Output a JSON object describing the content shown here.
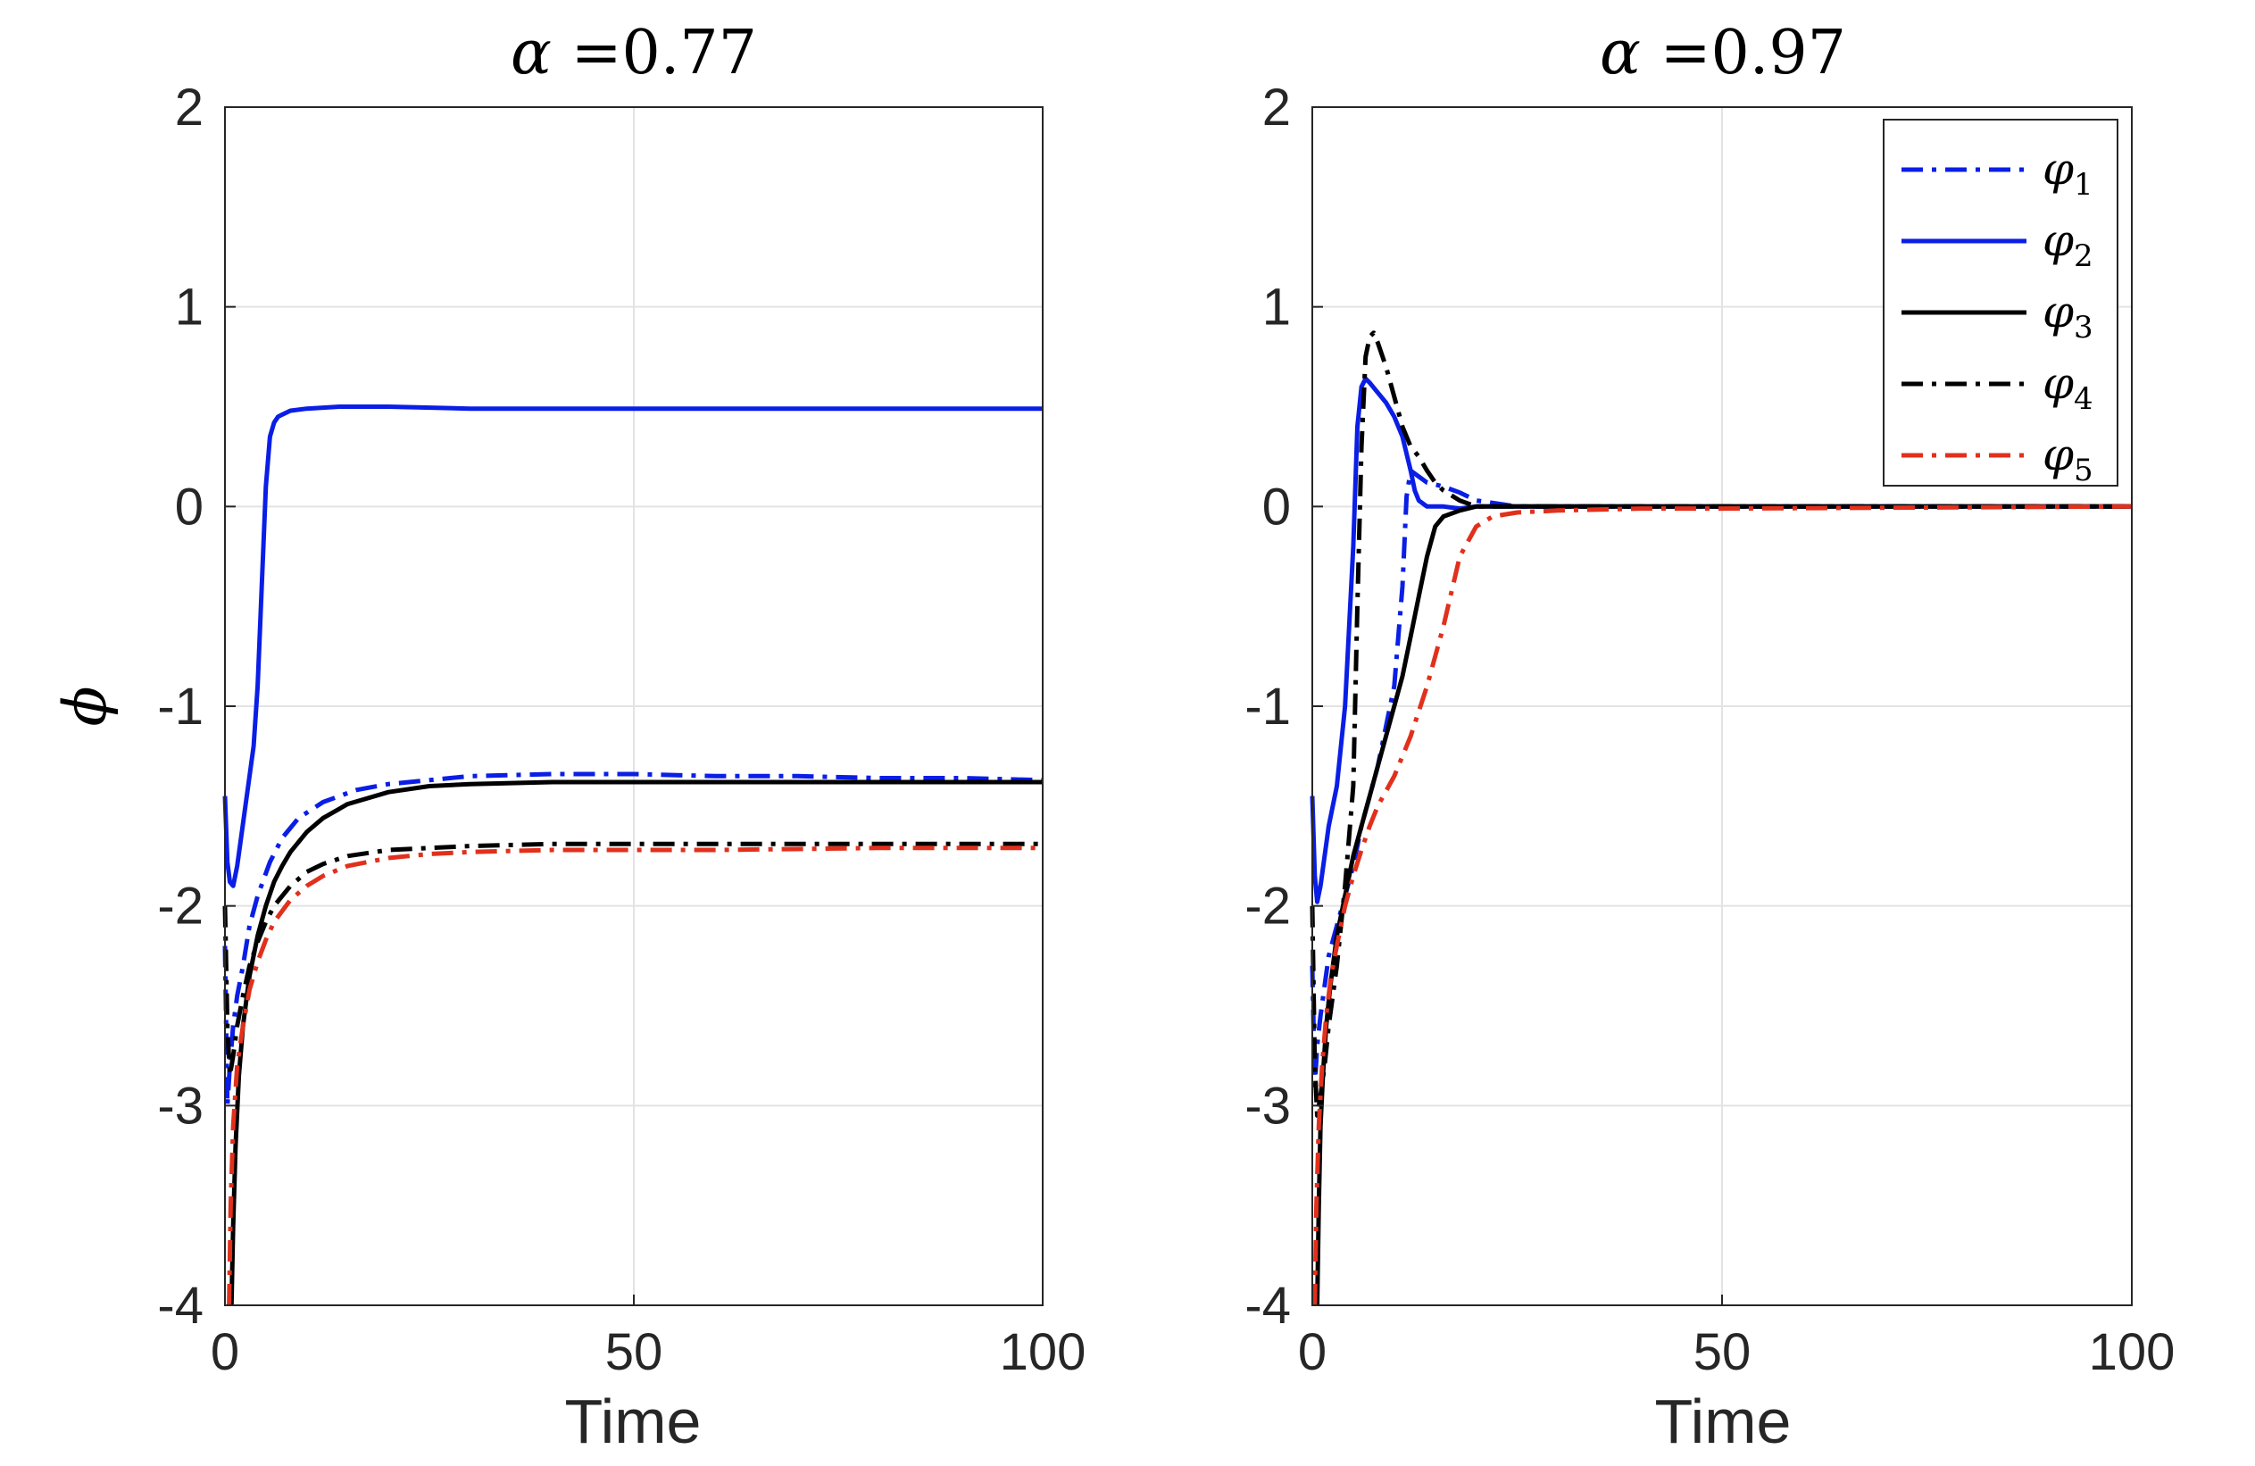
{
  "chart_data": [
    {
      "type": "line",
      "title_prefix": "α =",
      "title_value": "0.77",
      "xlabel": "Time",
      "ylabel": "ϕ",
      "xlim": [
        0,
        100
      ],
      "ylim": [
        -4,
        2
      ],
      "xticks": [
        "0",
        "50",
        "100"
      ],
      "yticks": [
        "-4",
        "-3",
        "-2",
        "-1",
        "0",
        "1",
        "2"
      ],
      "grid": true,
      "series": [
        {
          "name": "φ1",
          "color": "#0a1ee6",
          "dash": "dashdot",
          "x": [
            0,
            0.3,
            0.6,
            1.0,
            1.5,
            2.2,
            3,
            4,
            5.5,
            7,
            9,
            12,
            16,
            20,
            25,
            30,
            40,
            50,
            60,
            70,
            80,
            90,
            100
          ],
          "y": [
            -2.2,
            -3.0,
            -2.8,
            -2.6,
            -2.45,
            -2.3,
            -2.1,
            -1.95,
            -1.78,
            -1.66,
            -1.56,
            -1.48,
            -1.42,
            -1.39,
            -1.37,
            -1.35,
            -1.34,
            -1.34,
            -1.35,
            -1.35,
            -1.36,
            -1.36,
            -1.37
          ]
        },
        {
          "name": "φ2",
          "color": "#0a1ee6",
          "dash": "solid",
          "x": [
            0,
            0.3,
            0.6,
            1.0,
            1.5,
            2,
            2.5,
            3,
            3.5,
            4,
            4.5,
            5,
            5.5,
            6,
            6.5,
            7,
            8,
            10,
            14,
            20,
            30,
            50,
            70,
            100
          ],
          "y": [
            -1.45,
            -1.78,
            -1.88,
            -1.9,
            -1.8,
            -1.65,
            -1.5,
            -1.35,
            -1.2,
            -0.9,
            -0.4,
            0.1,
            0.35,
            0.42,
            0.45,
            0.46,
            0.48,
            0.49,
            0.5,
            0.5,
            0.49,
            0.49,
            0.49,
            0.49
          ]
        },
        {
          "name": "φ3",
          "color": "#000000",
          "dash": "solid",
          "x": [
            0.8,
            1.0,
            1.3,
            1.7,
            2.2,
            3,
            4,
            5,
            6,
            7,
            8,
            10,
            12,
            15,
            20,
            25,
            30,
            40,
            50,
            60,
            80,
            100
          ],
          "y": [
            -4.0,
            -3.6,
            -3.2,
            -2.85,
            -2.6,
            -2.35,
            -2.15,
            -2.0,
            -1.88,
            -1.8,
            -1.73,
            -1.63,
            -1.56,
            -1.49,
            -1.43,
            -1.4,
            -1.39,
            -1.38,
            -1.38,
            -1.38,
            -1.38,
            -1.38
          ]
        },
        {
          "name": "φ4",
          "color": "#000000",
          "dash": "dashdot",
          "x": [
            0,
            0.3,
            0.6,
            1.0,
            1.5,
            2.2,
            3,
            4,
            5,
            6,
            8,
            10,
            12,
            15,
            20,
            25,
            30,
            40,
            50,
            60,
            80,
            100
          ],
          "y": [
            -2.0,
            -2.6,
            -2.85,
            -2.75,
            -2.6,
            -2.45,
            -2.3,
            -2.18,
            -2.08,
            -2.0,
            -1.9,
            -1.83,
            -1.79,
            -1.75,
            -1.72,
            -1.71,
            -1.7,
            -1.69,
            -1.69,
            -1.69,
            -1.69,
            -1.69
          ]
        },
        {
          "name": "φ5",
          "color": "#e1301c",
          "dash": "dashdot",
          "x": [
            0.5,
            0.7,
            1.0,
            1.5,
            2.2,
            3,
            4,
            5,
            6,
            8,
            10,
            12,
            15,
            20,
            25,
            30,
            40,
            50,
            60,
            80,
            100
          ],
          "y": [
            -4.0,
            -3.5,
            -3.1,
            -2.8,
            -2.6,
            -2.42,
            -2.28,
            -2.17,
            -2.08,
            -1.97,
            -1.9,
            -1.85,
            -1.8,
            -1.76,
            -1.74,
            -1.73,
            -1.72,
            -1.72,
            -1.72,
            -1.71,
            -1.71
          ]
        }
      ]
    },
    {
      "type": "line",
      "title_prefix": "α =",
      "title_value": "0.97",
      "xlabel": "Time",
      "ylabel": "",
      "xlim": [
        0,
        100
      ],
      "ylim": [
        -4,
        2
      ],
      "xticks": [
        "0",
        "50",
        "100"
      ],
      "yticks": [
        "-4",
        "-3",
        "-2",
        "-1",
        "0",
        "1",
        "2"
      ],
      "grid": true,
      "legend": {
        "placement": "top-right",
        "entries": [
          "φ1",
          "φ2",
          "φ3",
          "φ4",
          "φ5"
        ]
      },
      "series": [
        {
          "name": "φ1",
          "color": "#0a1ee6",
          "dash": "dashdot",
          "x": [
            0,
            0.3,
            0.6,
            1.0,
            1.5,
            2,
            3,
            4,
            5,
            5.5,
            6,
            7,
            8,
            9,
            10,
            11,
            11.5,
            12,
            13,
            14,
            16,
            18,
            20,
            25,
            30,
            50,
            100
          ],
          "y": [
            -2.3,
            -2.9,
            -2.7,
            -2.55,
            -2.4,
            -2.25,
            -2.1,
            -1.95,
            -1.8,
            -1.7,
            -1.6,
            -1.45,
            -1.3,
            -1.1,
            -0.9,
            -0.4,
            0.05,
            0.18,
            0.15,
            0.12,
            0.1,
            0.07,
            0.03,
            0.0,
            0.0,
            0.0,
            0.0
          ]
        },
        {
          "name": "φ2",
          "color": "#0a1ee6",
          "dash": "solid",
          "x": [
            0,
            0.3,
            0.6,
            1.0,
            1.5,
            2,
            3,
            4,
            5,
            5.5,
            6,
            6.5,
            7,
            8,
            9,
            10,
            11,
            12,
            12.5,
            13,
            14,
            16,
            18,
            20,
            30,
            100
          ],
          "y": [
            -1.45,
            -1.85,
            -1.98,
            -1.9,
            -1.75,
            -1.6,
            -1.4,
            -1.0,
            -0.2,
            0.4,
            0.6,
            0.64,
            0.62,
            0.57,
            0.52,
            0.45,
            0.35,
            0.18,
            0.08,
            0.03,
            0.0,
            0.0,
            -0.01,
            0.0,
            0.0,
            0.0
          ]
        },
        {
          "name": "φ3",
          "color": "#000000",
          "dash": "solid",
          "x": [
            0.6,
            0.8,
            1.0,
            1.3,
            1.7,
            2.2,
            3,
            4,
            5,
            6,
            7,
            8,
            9,
            10,
            11,
            12,
            13,
            14,
            15,
            16,
            18,
            20,
            25,
            30,
            50,
            100
          ],
          "y": [
            -4.0,
            -3.5,
            -3.1,
            -2.85,
            -2.6,
            -2.4,
            -2.15,
            -1.95,
            -1.75,
            -1.6,
            -1.45,
            -1.3,
            -1.15,
            -1.0,
            -0.85,
            -0.65,
            -0.45,
            -0.25,
            -0.1,
            -0.05,
            -0.02,
            0.0,
            0.0,
            0.0,
            0.0,
            0.0
          ]
        },
        {
          "name": "φ4",
          "color": "#000000",
          "dash": "dashdot",
          "x": [
            0,
            0.3,
            0.6,
            1.0,
            1.5,
            2,
            3,
            4,
            5,
            5.5,
            6,
            6.5,
            7,
            7.5,
            8,
            9,
            10,
            11,
            12,
            13,
            14,
            15,
            16,
            18,
            20,
            25,
            100
          ],
          "y": [
            -2.0,
            -2.8,
            -3.05,
            -2.95,
            -2.8,
            -2.6,
            -2.3,
            -1.9,
            -1.4,
            -0.5,
            0.3,
            0.75,
            0.85,
            0.87,
            0.82,
            0.7,
            0.55,
            0.4,
            0.3,
            0.25,
            0.18,
            0.12,
            0.08,
            0.03,
            0.0,
            0.0,
            0.0
          ]
        },
        {
          "name": "φ5",
          "color": "#e1301c",
          "dash": "dashdot",
          "x": [
            0.3,
            0.5,
            0.8,
            1.2,
            1.7,
            2.3,
            3,
            4,
            5,
            6,
            7,
            8,
            10,
            12,
            14,
            16,
            18,
            20,
            22,
            25,
            30,
            40,
            50,
            100
          ],
          "y": [
            -4.0,
            -3.5,
            -3.1,
            -2.8,
            -2.55,
            -2.35,
            -2.2,
            -2.0,
            -1.85,
            -1.72,
            -1.6,
            -1.5,
            -1.35,
            -1.15,
            -0.9,
            -0.6,
            -0.25,
            -0.1,
            -0.05,
            -0.03,
            -0.02,
            -0.01,
            -0.01,
            0.0
          ]
        }
      ]
    }
  ]
}
